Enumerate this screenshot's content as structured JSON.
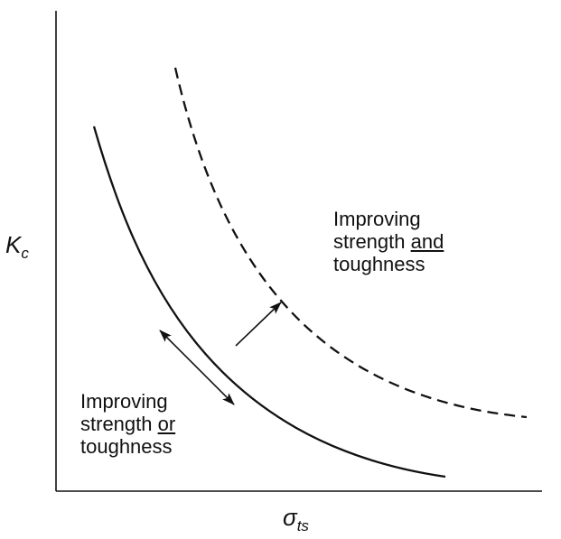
{
  "y_axis": {
    "symbol": "K",
    "subscript": "c"
  },
  "x_axis": {
    "symbol": "σ",
    "subscript": "ts"
  },
  "annotations": {
    "upper": {
      "line1": "Improving",
      "line2_before": "strength ",
      "line2_underlined": "and",
      "line3": "toughness"
    },
    "lower": {
      "line1": "Improving",
      "line2_before": "strength ",
      "line2_underlined": "or",
      "line3": "toughness"
    }
  },
  "curves": {
    "current": {
      "style": "solid",
      "color": "#111111"
    },
    "improved": {
      "style": "dashed",
      "color": "#111111"
    }
  }
}
